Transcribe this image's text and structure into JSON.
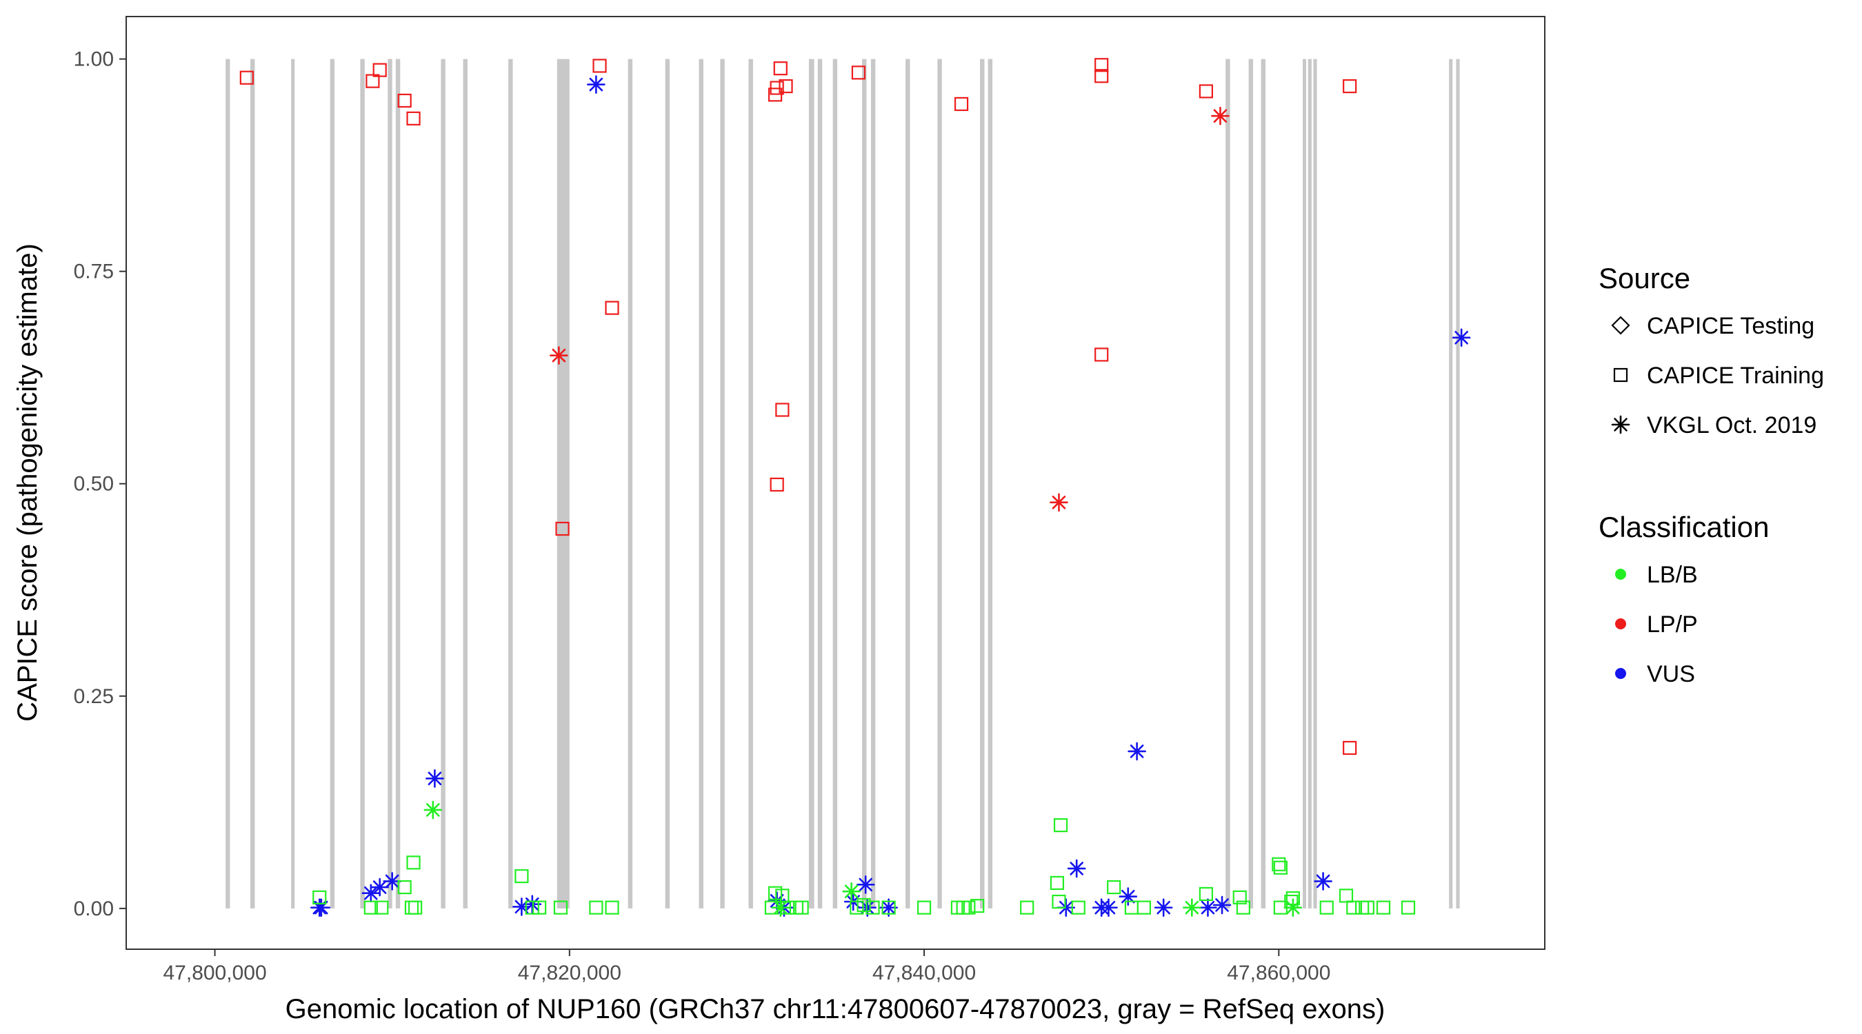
{
  "chart_data": {
    "type": "scatter",
    "title": "",
    "xlabel": "Genomic location of NUP160 (GRCh37 chr11:47800607-47870023, gray = RefSeq exons)",
    "ylabel": "CAPICE score (pathogenicity estimate)",
    "xlim": [
      47795000,
      47875000
    ],
    "ylim": [
      -0.048,
      1.05
    ],
    "x_ticks": [
      47800000,
      47820000,
      47840000,
      47860000
    ],
    "x_tick_labels": [
      "47,800,000",
      "47,820,000",
      "47,840,000",
      "47,860,000"
    ],
    "y_ticks": [
      0,
      0.25,
      0.5,
      0.75,
      1
    ],
    "y_tick_labels": [
      "0.00",
      "0.25",
      "0.50",
      "0.75",
      "1.00"
    ],
    "grid": false,
    "colors": {
      "LB/B": "#22ee22",
      "LP/P": "#ee1c1c",
      "VUS": "#1515ee",
      "exon": "#c8c8c8",
      "axis": "#333333"
    },
    "exons": [
      [
        47800607,
        47800850
      ],
      [
        47802000,
        47802250
      ],
      [
        47804300,
        47804500
      ],
      [
        47806500,
        47806750
      ],
      [
        47808200,
        47808450
      ],
      [
        47809750,
        47810000
      ],
      [
        47810200,
        47810450
      ],
      [
        47812750,
        47813000
      ],
      [
        47814000,
        47814250
      ],
      [
        47816550,
        47816800
      ],
      [
        47819300,
        47820000
      ],
      [
        47823300,
        47823550
      ],
      [
        47825400,
        47825650
      ],
      [
        47827300,
        47827550
      ],
      [
        47828500,
        47828750
      ],
      [
        47830100,
        47830350
      ],
      [
        47833500,
        47833800
      ],
      [
        47834000,
        47834250
      ],
      [
        47834850,
        47835100
      ],
      [
        47836500,
        47836750
      ],
      [
        47837000,
        47837250
      ],
      [
        47838950,
        47839200
      ],
      [
        47840750,
        47841000
      ],
      [
        47843150,
        47843400
      ],
      [
        47843600,
        47843850
      ],
      [
        47857000,
        47857250
      ],
      [
        47858300,
        47858550
      ],
      [
        47859000,
        47859250
      ],
      [
        47861350,
        47861500
      ],
      [
        47861650,
        47861850
      ],
      [
        47861950,
        47862150
      ],
      [
        47869600,
        47869800
      ],
      [
        47870000,
        47870200
      ]
    ],
    "series": [
      {
        "source": "CAPICE Training",
        "classification": "LP/P",
        "marker": "square",
        "points": [
          [
            47801800,
            0.978
          ],
          [
            47808900,
            0.974
          ],
          [
            47809300,
            0.987
          ],
          [
            47810700,
            0.951
          ],
          [
            47811200,
            0.93
          ],
          [
            47821700,
            0.992
          ],
          [
            47822400,
            0.707
          ],
          [
            47819600,
            0.447
          ],
          [
            47831600,
            0.958
          ],
          [
            47831700,
            0.966
          ],
          [
            47831900,
            0.989
          ],
          [
            47832200,
            0.968
          ],
          [
            47832000,
            0.587
          ],
          [
            47831700,
            0.499
          ],
          [
            47836300,
            0.984
          ],
          [
            47842100,
            0.947
          ],
          [
            47850000,
            0.993
          ],
          [
            47850000,
            0.98
          ],
          [
            47850000,
            0.652
          ],
          [
            47855900,
            0.962
          ],
          [
            47864000,
            0.968
          ],
          [
            47864000,
            0.189
          ]
        ]
      },
      {
        "source": "VKGL Oct. 2019",
        "classification": "LP/P",
        "marker": "asterisk",
        "points": [
          [
            47819400,
            0.651
          ],
          [
            47847600,
            0.478
          ],
          [
            47856700,
            0.933
          ]
        ]
      },
      {
        "source": "VKGL Oct. 2019",
        "classification": "VUS",
        "marker": "asterisk",
        "points": [
          [
            47805900,
            0.001
          ],
          [
            47806000,
            0.001
          ],
          [
            47808800,
            0.018
          ],
          [
            47809300,
            0.025
          ],
          [
            47810000,
            0.032
          ],
          [
            47812400,
            0.153
          ],
          [
            47817300,
            0.002
          ],
          [
            47817900,
            0.005
          ],
          [
            47821500,
            0.97
          ],
          [
            47831700,
            0.009
          ],
          [
            47832100,
            0.001
          ],
          [
            47836000,
            0.008
          ],
          [
            47836700,
            0.028
          ],
          [
            47836800,
            0.001
          ],
          [
            47838000,
            0.001
          ],
          [
            47848000,
            0.001
          ],
          [
            47848600,
            0.047
          ],
          [
            47850000,
            0.001
          ],
          [
            47850400,
            0.001
          ],
          [
            47851500,
            0.014
          ],
          [
            47852000,
            0.185
          ],
          [
            47853500,
            0.001
          ],
          [
            47856000,
            0.001
          ],
          [
            47856800,
            0.004
          ],
          [
            47862500,
            0.032
          ],
          [
            47870300,
            0.672
          ]
        ]
      },
      {
        "source": "VKGL Oct. 2019",
        "classification": "LB/B",
        "marker": "asterisk",
        "points": [
          [
            47812300,
            0.116
          ],
          [
            47835900,
            0.02
          ],
          [
            47831900,
            0.001
          ],
          [
            47855100,
            0.001
          ],
          [
            47860800,
            0.001
          ]
        ]
      },
      {
        "source": "CAPICE Training",
        "classification": "LB/B",
        "marker": "square",
        "points": [
          [
            47805900,
            0.013
          ],
          [
            47808800,
            0.001
          ],
          [
            47809400,
            0.001
          ],
          [
            47810700,
            0.025
          ],
          [
            47811200,
            0.054
          ],
          [
            47811100,
            0.001
          ],
          [
            47811300,
            0.001
          ],
          [
            47817300,
            0.038
          ],
          [
            47817900,
            0.001
          ],
          [
            47818300,
            0.001
          ],
          [
            47819500,
            0.001
          ],
          [
            47821500,
            0.001
          ],
          [
            47822400,
            0.001
          ],
          [
            47831400,
            0.001
          ],
          [
            47831600,
            0.018
          ],
          [
            47832000,
            0.015
          ],
          [
            47832300,
            0.001
          ],
          [
            47832800,
            0.001
          ],
          [
            47833100,
            0.001
          ],
          [
            47836200,
            0.001
          ],
          [
            47836600,
            0.004
          ],
          [
            47837100,
            0.001
          ],
          [
            47838000,
            0.001
          ],
          [
            47840000,
            0.001
          ],
          [
            47841900,
            0.001
          ],
          [
            47842200,
            0.001
          ],
          [
            47842500,
            0.001
          ],
          [
            47843000,
            0.003
          ],
          [
            47845800,
            0.001
          ],
          [
            47847500,
            0.03
          ],
          [
            47847600,
            0.008
          ],
          [
            47847700,
            0.098
          ],
          [
            47848700,
            0.001
          ],
          [
            47850700,
            0.025
          ],
          [
            47851700,
            0.001
          ],
          [
            47852400,
            0.001
          ],
          [
            47855900,
            0.017
          ],
          [
            47857800,
            0.013
          ],
          [
            47858000,
            0.001
          ],
          [
            47860000,
            0.052
          ],
          [
            47860100,
            0.048
          ],
          [
            47860100,
            0.001
          ],
          [
            47860700,
            0.008
          ],
          [
            47860800,
            0.012
          ],
          [
            47862700,
            0.001
          ],
          [
            47863800,
            0.015
          ],
          [
            47864200,
            0.001
          ],
          [
            47864700,
            0.001
          ],
          [
            47865000,
            0.001
          ],
          [
            47865900,
            0.001
          ],
          [
            47867300,
            0.001
          ]
        ]
      }
    ],
    "legend": {
      "placement": "right",
      "source_title": "Source",
      "source_items": [
        "CAPICE Testing",
        "CAPICE Training",
        "VKGL Oct. 2019"
      ],
      "class_title": "Classification",
      "class_items": [
        "LB/B",
        "LP/P",
        "VUS"
      ]
    }
  }
}
